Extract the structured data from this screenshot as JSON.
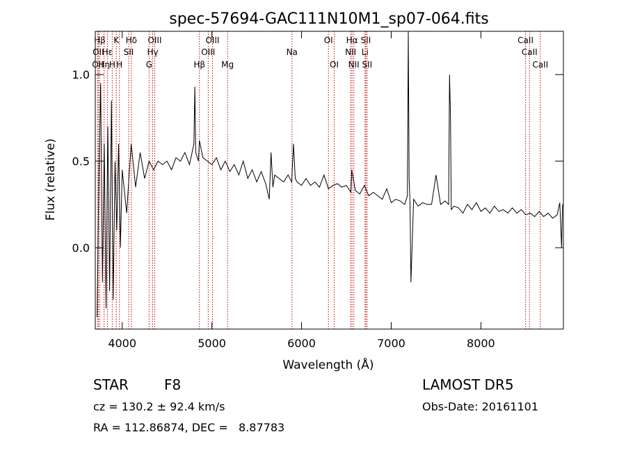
{
  "colors": {
    "background": "#ffffff",
    "ink": "#000000",
    "line_marker": "#cc0000"
  },
  "chart_data": {
    "type": "line",
    "title": "spec-57694-GAC111N10M1_sp07-064.fits",
    "xlabel": "Wavelength (Å)",
    "ylabel": "Flux (relative)",
    "xlim": [
      3700,
      8920
    ],
    "ylim": [
      -0.47,
      1.25
    ],
    "xticks": [
      4000,
      5000,
      6000,
      7000,
      8000
    ],
    "xtick_labels": [
      "4000",
      "5000",
      "6000",
      "7000",
      "8000"
    ],
    "yticks": [
      0.0,
      0.5,
      1.0
    ],
    "ytick_labels": [
      "0.0",
      "0.5",
      "1.0"
    ],
    "grid": false,
    "series": [
      {
        "x": [
          3720,
          3740,
          3760,
          3780,
          3800,
          3820,
          3840,
          3860,
          3880,
          3900,
          3920,
          3940,
          3960,
          3980,
          4000,
          4050,
          4100,
          4150,
          4200,
          4250,
          4300,
          4350,
          4400,
          4450,
          4500,
          4550,
          4600,
          4650,
          4700,
          4750,
          4800,
          4810,
          4820,
          4850,
          4861,
          4900,
          4950,
          5000,
          5050,
          5100,
          5150,
          5200,
          5250,
          5300,
          5350,
          5400,
          5450,
          5500,
          5550,
          5600,
          5640,
          5660,
          5680,
          5700,
          5750,
          5800,
          5850,
          5890,
          5910,
          5930,
          5950,
          6000,
          6050,
          6100,
          6150,
          6200,
          6250,
          6300,
          6350,
          6400,
          6450,
          6500,
          6550,
          6560,
          6600,
          6650,
          6700,
          6750,
          6800,
          6850,
          6900,
          6950,
          7000,
          7050,
          7100,
          7150,
          7180,
          7190,
          7200,
          7210,
          7220,
          7250,
          7300,
          7350,
          7400,
          7450,
          7500,
          7550,
          7600,
          7640,
          7650,
          7660,
          7670,
          7700,
          7750,
          7800,
          7850,
          7900,
          7950,
          8000,
          8050,
          8100,
          8150,
          8200,
          8250,
          8300,
          8350,
          8400,
          8450,
          8500,
          8550,
          8600,
          8650,
          8700,
          8750,
          8800,
          8850,
          8880,
          8900,
          8910
        ],
        "y": [
          -0.4,
          0.4,
          0.95,
          -0.2,
          0.6,
          -0.35,
          0.7,
          -0.25,
          0.85,
          -0.3,
          0.5,
          0.1,
          0.6,
          0.0,
          0.45,
          0.2,
          0.6,
          0.35,
          0.55,
          0.4,
          0.5,
          0.45,
          0.5,
          0.48,
          0.5,
          0.45,
          0.52,
          0.5,
          0.55,
          0.48,
          0.6,
          0.93,
          0.55,
          0.5,
          0.62,
          0.52,
          0.5,
          0.48,
          0.52,
          0.45,
          0.5,
          0.44,
          0.48,
          0.42,
          0.5,
          0.4,
          0.45,
          0.38,
          0.44,
          0.37,
          0.28,
          0.55,
          0.35,
          0.42,
          0.4,
          0.38,
          0.42,
          0.38,
          0.6,
          0.4,
          0.38,
          0.36,
          0.4,
          0.36,
          0.38,
          0.35,
          0.42,
          0.34,
          0.36,
          0.37,
          0.35,
          0.36,
          0.32,
          0.45,
          0.33,
          0.31,
          0.36,
          0.3,
          0.32,
          0.3,
          0.28,
          0.34,
          0.26,
          0.28,
          0.27,
          0.25,
          0.3,
          1.25,
          0.4,
          0.25,
          -0.2,
          0.28,
          0.24,
          0.26,
          0.25,
          0.25,
          0.42,
          0.25,
          0.27,
          0.25,
          1.0,
          0.78,
          0.22,
          0.24,
          0.23,
          0.2,
          0.25,
          0.22,
          0.26,
          0.21,
          0.23,
          0.2,
          0.24,
          0.21,
          0.22,
          0.2,
          0.23,
          0.2,
          0.22,
          0.19,
          0.2,
          0.18,
          0.21,
          0.18,
          0.2,
          0.17,
          0.19,
          0.26,
          0.0,
          0.25
        ]
      }
    ],
    "line_markers": [
      {
        "wavelength": 3727,
        "label": "OII",
        "row": 2
      },
      {
        "wavelength": 3734,
        "label": "OII",
        "row": 1
      },
      {
        "wavelength": 3750,
        "label": "Hβ",
        "row": 0
      },
      {
        "wavelength": 3798,
        "label": "Hη",
        "row": 2
      },
      {
        "wavelength": 3835,
        "label": "Hε",
        "row": 1
      },
      {
        "wavelength": 3889,
        "label": "H",
        "row": 2
      },
      {
        "wavelength": 3934,
        "label": "K",
        "row": 0
      },
      {
        "wavelength": 3969,
        "label": "H",
        "row": 2
      },
      {
        "wavelength": 4072,
        "label": "SII",
        "row": 1
      },
      {
        "wavelength": 4102,
        "label": "Hδ",
        "row": 0
      },
      {
        "wavelength": 4300,
        "label": "G",
        "row": 2
      },
      {
        "wavelength": 4340,
        "label": "Hγ",
        "row": 1
      },
      {
        "wavelength": 4363,
        "label": "OIII",
        "row": 0
      },
      {
        "wavelength": 4861,
        "label": "Hβ",
        "row": 2
      },
      {
        "wavelength": 4959,
        "label": "OIII",
        "row": 1
      },
      {
        "wavelength": 5007,
        "label": "OIII",
        "row": 0
      },
      {
        "wavelength": 5175,
        "label": "Mg",
        "row": 2
      },
      {
        "wavelength": 5893,
        "label": "Na",
        "row": 1
      },
      {
        "wavelength": 6300,
        "label": "OI",
        "row": 0
      },
      {
        "wavelength": 6364,
        "label": "OI",
        "row": 2
      },
      {
        "wavelength": 6548,
        "label": "NII",
        "row": 1
      },
      {
        "wavelength": 6563,
        "label": "Hα",
        "row": 0
      },
      {
        "wavelength": 6583,
        "label": "NII",
        "row": 2
      },
      {
        "wavelength": 6708,
        "label": "Li",
        "row": 1
      },
      {
        "wavelength": 6717,
        "label": "SII",
        "row": 0
      },
      {
        "wavelength": 6731,
        "label": "SII",
        "row": 2
      },
      {
        "wavelength": 8498,
        "label": "CaII",
        "row": 0
      },
      {
        "wavelength": 8542,
        "label": "CaII",
        "row": 1
      },
      {
        "wavelength": 8662,
        "label": "CaII",
        "row": 2
      }
    ]
  },
  "info": {
    "object_class": "STAR",
    "subclass": "F8",
    "survey": "LAMOST DR5",
    "cz": "cz = 130.2 ± 92.4 km/s",
    "obs_date": "Obs-Date: 20161101",
    "coords": "RA = 112.86874, DEC =   8.87783"
  }
}
